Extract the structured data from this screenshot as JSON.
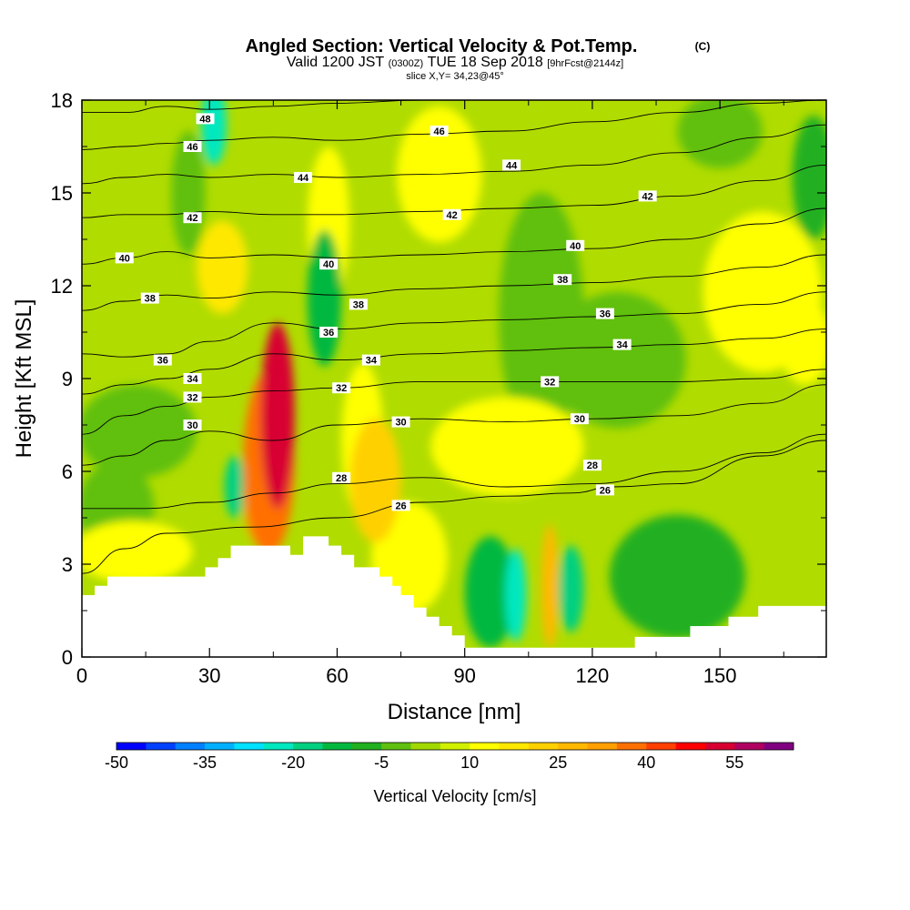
{
  "chart_data": {
    "type": "heatmap",
    "title": "Angled Section: Vertical Velocity & Pot.Temp.",
    "title_mark": "(C)",
    "subtitle": {
      "valid": "Valid 1200 JST",
      "utc": "(0300Z)",
      "date": "TUE 18 Sep 2018",
      "forecast": "[9hrFcst@2144z]"
    },
    "slice_label": "slice X,Y= 34,23@45°",
    "xlabel": "Distance [nm]",
    "ylabel": "Height [Kft MSL]",
    "xlim": [
      0,
      175
    ],
    "ylim": [
      0,
      18
    ],
    "x_ticks": [
      "0",
      "30",
      "60",
      "90",
      "120",
      "150"
    ],
    "y_ticks": [
      "0",
      "3",
      "6",
      "9",
      "12",
      "15",
      "18"
    ],
    "colorbar": {
      "label": "Vertical Velocity [cm/s]",
      "ticks": [
        "-50",
        "-35",
        "-20",
        "-5",
        "10",
        "25",
        "40",
        "55"
      ],
      "min": -50,
      "max": 65,
      "step": 5,
      "colors": [
        "#0000ff",
        "#0040ff",
        "#0080ff",
        "#00b0ff",
        "#00e0ff",
        "#00e8c0",
        "#00d080",
        "#00b840",
        "#20b020",
        "#60c010",
        "#a0d800",
        "#d0f000",
        "#ffff00",
        "#ffe800",
        "#ffd000",
        "#ffb800",
        "#ffa000",
        "#ff7000",
        "#ff4000",
        "#ff0000",
        "#d80030",
        "#b00060",
        "#800080"
      ]
    },
    "contour_labels": [
      "26",
      "28",
      "30",
      "32",
      "34",
      "36",
      "38",
      "40",
      "42",
      "44",
      "46",
      "48"
    ],
    "terrain": [
      [
        0,
        2
      ],
      [
        3,
        2
      ],
      [
        3,
        2.3
      ],
      [
        6,
        2.3
      ],
      [
        6,
        2.6
      ],
      [
        29,
        2.6
      ],
      [
        29,
        2.9
      ],
      [
        32,
        2.9
      ],
      [
        32,
        3.2
      ],
      [
        35,
        3.2
      ],
      [
        35,
        3.6
      ],
      [
        49,
        3.6
      ],
      [
        49,
        3.3
      ],
      [
        52,
        3.3
      ],
      [
        52,
        3.9
      ],
      [
        58,
        3.9
      ],
      [
        58,
        3.6
      ],
      [
        61,
        3.6
      ],
      [
        61,
        3.3
      ],
      [
        64,
        3.3
      ],
      [
        64,
        2.9
      ],
      [
        70,
        2.9
      ],
      [
        70,
        2.6
      ],
      [
        73,
        2.6
      ],
      [
        73,
        2.3
      ],
      [
        75,
        2.3
      ],
      [
        75,
        2.0
      ],
      [
        78,
        2.0
      ],
      [
        78,
        1.6
      ],
      [
        81,
        1.6
      ],
      [
        81,
        1.3
      ],
      [
        84,
        1.3
      ],
      [
        84,
        1.0
      ],
      [
        87,
        1.0
      ],
      [
        87,
        0.7
      ],
      [
        90,
        0.7
      ],
      [
        90,
        0.3
      ],
      [
        130,
        0.3
      ],
      [
        130,
        0.65
      ],
      [
        143,
        0.65
      ],
      [
        143,
        1.0
      ],
      [
        152,
        1.0
      ],
      [
        152,
        1.3
      ],
      [
        159,
        1.3
      ],
      [
        159,
        1.65
      ],
      [
        175,
        1.65
      ]
    ],
    "isentropes": [
      {
        "label": "26",
        "pts": [
          [
            0,
            2.7
          ],
          [
            10,
            3.5
          ],
          [
            20,
            4.0
          ],
          [
            40,
            4.2
          ],
          [
            60,
            4.5
          ],
          [
            80,
            5.0
          ],
          [
            100,
            5.2
          ],
          [
            115,
            5.3
          ],
          [
            125,
            5.5
          ],
          [
            140,
            5.6
          ],
          [
            160,
            6.5
          ],
          [
            175,
            7.0
          ]
        ]
      },
      {
        "label": "28",
        "pts": [
          [
            0,
            4.8
          ],
          [
            15,
            4.8
          ],
          [
            30,
            5.0
          ],
          [
            45,
            5.3
          ],
          [
            60,
            5.6
          ],
          [
            80,
            5.8
          ],
          [
            100,
            5.5
          ],
          [
            120,
            5.6
          ],
          [
            140,
            6.0
          ],
          [
            160,
            6.6
          ],
          [
            175,
            7.2
          ]
        ]
      },
      {
        "label": "30",
        "pts": [
          [
            0,
            6.2
          ],
          [
            10,
            6.5
          ],
          [
            20,
            7.0
          ],
          [
            30,
            7.3
          ],
          [
            45,
            7.0
          ],
          [
            60,
            7.5
          ],
          [
            80,
            7.7
          ],
          [
            100,
            7.6
          ],
          [
            120,
            7.7
          ],
          [
            140,
            7.8
          ],
          [
            160,
            8.2
          ],
          [
            175,
            8.8
          ]
        ]
      },
      {
        "label": "32",
        "pts": [
          [
            0,
            7.2
          ],
          [
            10,
            7.8
          ],
          [
            20,
            8.1
          ],
          [
            30,
            8.4
          ],
          [
            45,
            8.6
          ],
          [
            60,
            8.7
          ],
          [
            80,
            8.9
          ],
          [
            100,
            8.9
          ],
          [
            120,
            8.9
          ],
          [
            140,
            8.9
          ],
          [
            160,
            9.0
          ],
          [
            175,
            9.3
          ]
        ]
      },
      {
        "label": "34",
        "pts": [
          [
            0,
            8.5
          ],
          [
            10,
            8.8
          ],
          [
            20,
            9.0
          ],
          [
            30,
            9.3
          ],
          [
            45,
            9.8
          ],
          [
            60,
            9.6
          ],
          [
            80,
            9.8
          ],
          [
            100,
            9.9
          ],
          [
            120,
            10.0
          ],
          [
            140,
            10.1
          ],
          [
            160,
            10.3
          ],
          [
            175,
            10.6
          ]
        ]
      },
      {
        "label": "36",
        "pts": [
          [
            0,
            9.8
          ],
          [
            10,
            9.7
          ],
          [
            20,
            9.8
          ],
          [
            30,
            10.2
          ],
          [
            45,
            10.8
          ],
          [
            60,
            10.6
          ],
          [
            80,
            10.8
          ],
          [
            100,
            10.9
          ],
          [
            120,
            11.0
          ],
          [
            140,
            11.1
          ],
          [
            160,
            11.4
          ],
          [
            175,
            11.8
          ]
        ]
      },
      {
        "label": "38",
        "pts": [
          [
            0,
            11.2
          ],
          [
            10,
            11.5
          ],
          [
            20,
            11.7
          ],
          [
            30,
            11.6
          ],
          [
            45,
            11.8
          ],
          [
            60,
            11.7
          ],
          [
            80,
            11.9
          ],
          [
            100,
            12.0
          ],
          [
            120,
            12.1
          ],
          [
            140,
            12.3
          ],
          [
            160,
            12.6
          ],
          [
            175,
            13.0
          ]
        ]
      },
      {
        "label": "40",
        "pts": [
          [
            0,
            12.7
          ],
          [
            10,
            12.9
          ],
          [
            20,
            13.1
          ],
          [
            30,
            12.9
          ],
          [
            45,
            13.0
          ],
          [
            60,
            12.9
          ],
          [
            80,
            13.0
          ],
          [
            100,
            13.1
          ],
          [
            120,
            13.2
          ],
          [
            140,
            13.5
          ],
          [
            160,
            14.0
          ],
          [
            175,
            14.5
          ]
        ]
      },
      {
        "label": "42",
        "pts": [
          [
            0,
            14.2
          ],
          [
            10,
            14.3
          ],
          [
            20,
            14.3
          ],
          [
            30,
            14.4
          ],
          [
            45,
            14.3
          ],
          [
            60,
            14.3
          ],
          [
            80,
            14.4
          ],
          [
            100,
            14.5
          ],
          [
            120,
            14.6
          ],
          [
            140,
            14.9
          ],
          [
            160,
            15.4
          ],
          [
            175,
            15.9
          ]
        ]
      },
      {
        "label": "44",
        "pts": [
          [
            0,
            15.3
          ],
          [
            10,
            15.5
          ],
          [
            20,
            15.6
          ],
          [
            30,
            15.5
          ],
          [
            45,
            15.6
          ],
          [
            60,
            15.5
          ],
          [
            80,
            15.6
          ],
          [
            100,
            15.7
          ],
          [
            120,
            15.9
          ],
          [
            140,
            16.3
          ],
          [
            160,
            16.8
          ],
          [
            175,
            17.2
          ]
        ]
      },
      {
        "label": "46",
        "pts": [
          [
            0,
            16.4
          ],
          [
            10,
            16.5
          ],
          [
            20,
            16.6
          ],
          [
            30,
            16.7
          ],
          [
            45,
            16.8
          ],
          [
            60,
            16.7
          ],
          [
            80,
            16.9
          ],
          [
            100,
            17.0
          ],
          [
            120,
            17.3
          ],
          [
            140,
            17.6
          ],
          [
            160,
            17.9
          ],
          [
            175,
            18.0
          ]
        ]
      },
      {
        "label": "48",
        "pts": [
          [
            0,
            17.6
          ],
          [
            10,
            17.6
          ],
          [
            20,
            17.8
          ],
          [
            30,
            17.7
          ],
          [
            45,
            17.8
          ],
          [
            60,
            17.9
          ],
          [
            80,
            18.0
          ],
          [
            100,
            18.0
          ]
        ]
      }
    ],
    "label_positions": [
      {
        "label": "48",
        "x": 29,
        "y": 17.4
      },
      {
        "label": "46",
        "x": 26,
        "y": 16.5
      },
      {
        "label": "46",
        "x": 84,
        "y": 17.0
      },
      {
        "label": "44",
        "x": 52,
        "y": 15.5
      },
      {
        "label": "44",
        "x": 101,
        "y": 15.9
      },
      {
        "label": "42",
        "x": 26,
        "y": 14.2
      },
      {
        "label": "42",
        "x": 87,
        "y": 14.3
      },
      {
        "label": "42",
        "x": 133,
        "y": 14.9
      },
      {
        "label": "40",
        "x": 10,
        "y": 12.9
      },
      {
        "label": "40",
        "x": 58,
        "y": 12.7
      },
      {
        "label": "40",
        "x": 116,
        "y": 13.3
      },
      {
        "label": "38",
        "x": 16,
        "y": 11.6
      },
      {
        "label": "38",
        "x": 65,
        "y": 11.4
      },
      {
        "label": "38",
        "x": 113,
        "y": 12.2
      },
      {
        "label": "36",
        "x": 19,
        "y": 9.6
      },
      {
        "label": "36",
        "x": 58,
        "y": 10.5
      },
      {
        "label": "36",
        "x": 123,
        "y": 11.1
      },
      {
        "label": "34",
        "x": 26,
        "y": 9.0
      },
      {
        "label": "34",
        "x": 68,
        "y": 9.6
      },
      {
        "label": "34",
        "x": 127,
        "y": 10.1
      },
      {
        "label": "32",
        "x": 26,
        "y": 8.4
      },
      {
        "label": "32",
        "x": 61,
        "y": 8.7
      },
      {
        "label": "32",
        "x": 110,
        "y": 8.9
      },
      {
        "label": "30",
        "x": 26,
        "y": 7.5
      },
      {
        "label": "30",
        "x": 75,
        "y": 7.6
      },
      {
        "label": "30",
        "x": 117,
        "y": 7.7
      },
      {
        "label": "28",
        "x": 61,
        "y": 5.8
      },
      {
        "label": "28",
        "x": 120,
        "y": 6.2
      },
      {
        "label": "26",
        "x": 75,
        "y": 4.9
      },
      {
        "label": "26",
        "x": 123,
        "y": 5.4
      }
    ],
    "velocity_features": [
      {
        "x": 46,
        "y": 7.8,
        "rx": 4,
        "ry": 3.0,
        "value": 50
      },
      {
        "x": 44,
        "y": 6.3,
        "rx": 6,
        "ry": 3.0,
        "value": 35
      },
      {
        "x": 42,
        "y": 5.2,
        "rx": 4,
        "ry": 1.6,
        "value": 30
      },
      {
        "x": 33,
        "y": 12.6,
        "rx": 6,
        "ry": 1.5,
        "value": 18
      },
      {
        "x": 58,
        "y": 14,
        "rx": 5,
        "ry": 2.5,
        "value": 12
      },
      {
        "x": 69,
        "y": 5.7,
        "rx": 6,
        "ry": 2.0,
        "value": 20
      },
      {
        "x": 66,
        "y": 7.0,
        "rx": 5,
        "ry": 2.5,
        "value": 13
      },
      {
        "x": 84,
        "y": 15.6,
        "rx": 10,
        "ry": 2.2,
        "value": 10
      },
      {
        "x": 100,
        "y": 6.8,
        "rx": 18,
        "ry": 1.6,
        "value": 10
      },
      {
        "x": 77,
        "y": 3.2,
        "rx": 9,
        "ry": 1.8,
        "value": 12
      },
      {
        "x": 12,
        "y": 3.4,
        "rx": 14,
        "ry": 1.0,
        "value": 12
      },
      {
        "x": 110,
        "y": 2.3,
        "rx": 2,
        "ry": 2.0,
        "value": 25
      },
      {
        "x": 160,
        "y": 11.8,
        "rx": 14,
        "ry": 2.6,
        "value": 10
      },
      {
        "x": 170,
        "y": 10.2,
        "rx": 6,
        "ry": 1.4,
        "value": 12
      },
      {
        "x": 31,
        "y": 17.2,
        "rx": 3,
        "ry": 1.3,
        "value": -22
      },
      {
        "x": 57,
        "y": 11.6,
        "rx": 4,
        "ry": 2.2,
        "value": -12
      },
      {
        "x": 36,
        "y": 5.5,
        "rx": 2.5,
        "ry": 1.0,
        "value": -18
      },
      {
        "x": 115,
        "y": 2.2,
        "rx": 3,
        "ry": 1.4,
        "value": -20
      },
      {
        "x": 102,
        "y": 2.0,
        "rx": 2.5,
        "ry": 1.5,
        "value": -22
      },
      {
        "x": 140,
        "y": 2.6,
        "rx": 16,
        "ry": 2.0,
        "value": -10
      },
      {
        "x": 96,
        "y": 2.1,
        "rx": 6,
        "ry": 1.8,
        "value": -12
      },
      {
        "x": 126,
        "y": 9.6,
        "rx": 16,
        "ry": 2.2,
        "value": -2
      },
      {
        "x": 108,
        "y": 11.0,
        "rx": 10,
        "ry": 4.0,
        "value": -3
      },
      {
        "x": 150,
        "y": 17.0,
        "rx": 10,
        "ry": 1.2,
        "value": -3
      },
      {
        "x": 172,
        "y": 15.5,
        "rx": 5,
        "ry": 2.0,
        "value": -6
      },
      {
        "x": 13,
        "y": 7.3,
        "rx": 14,
        "ry": 1.5,
        "value": -5
      },
      {
        "x": 8,
        "y": 4.8,
        "rx": 9,
        "ry": 1.5,
        "value": -4
      },
      {
        "x": 25,
        "y": 15.0,
        "rx": 4,
        "ry": 2.0,
        "value": -3
      }
    ]
  }
}
